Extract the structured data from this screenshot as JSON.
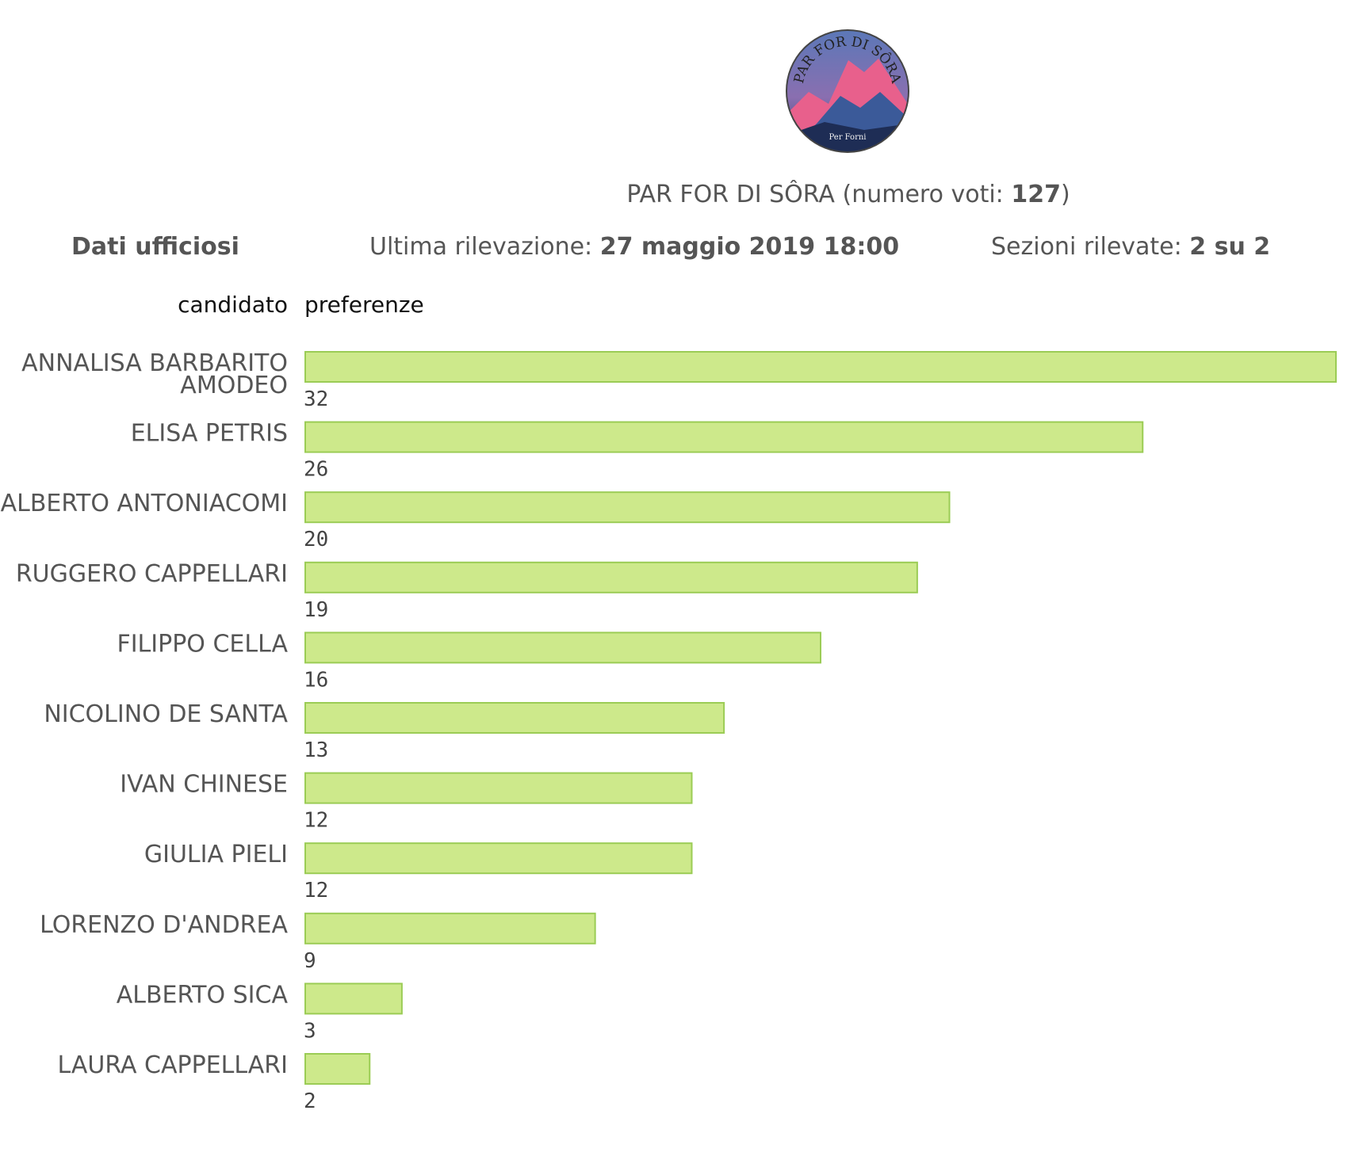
{
  "header": {
    "logo_text_top": "PAR FOR DI SÔRA",
    "logo_text_bottom": "Per Forni",
    "list_name": "PAR FOR DI SÔRA",
    "votes_prefix": "(numero voti:",
    "votes_value": "127",
    "votes_suffix": ")"
  },
  "info": {
    "dati_label": "Dati ufficiosi",
    "ultima_prefix": "Ultima rilevazione:",
    "ultima_value": "27 maggio 2019 18:00",
    "sezioni_prefix": "Sezioni rilevate:",
    "sezioni_value": "2 su 2"
  },
  "columns": {
    "candidato": "candidato",
    "preferenze": "preferenze"
  },
  "colors": {
    "bar_fill": "#cde98b",
    "bar_stroke": "#9bcc55"
  },
  "chart_data": {
    "type": "bar",
    "orientation": "horizontal",
    "title": "",
    "xlabel": "preferenze",
    "ylabel": "candidato",
    "categories": [
      [
        "ANNALISA BARBARITO",
        "AMODEO"
      ],
      [
        "ELISA PETRIS"
      ],
      [
        "ALBERTO ANTONIACOMI"
      ],
      [
        "RUGGERO CAPPELLARI"
      ],
      [
        "FILIPPO CELLA"
      ],
      [
        "NICOLINO DE SANTA"
      ],
      [
        "IVAN CHINESE"
      ],
      [
        "GIULIA PIELI"
      ],
      [
        "LORENZO D'ANDREA"
      ],
      [
        "ALBERTO SICA"
      ],
      [
        "LAURA CAPPELLARI"
      ]
    ],
    "values": [
      32,
      26,
      20,
      19,
      16,
      13,
      12,
      12,
      9,
      3,
      2
    ],
    "xlim": [
      0,
      32
    ],
    "grid": false,
    "legend": "none"
  }
}
